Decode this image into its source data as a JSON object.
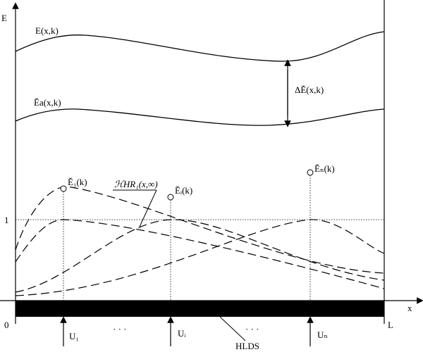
{
  "axes": {
    "y_label": "E",
    "x_label": "x",
    "origin": "0",
    "end": "L",
    "unit_level": "1"
  },
  "curves": {
    "total": "E(x,k)",
    "applied": "Ĕa(x,k)",
    "difference": "ΔĔ(x,k)"
  },
  "contributions": {
    "first": "Ĕ₁(k)",
    "function": "ℋHR₁(x,∞)",
    "middle": "Ĕᵢ(k)",
    "last": "Ĕₙ(k)"
  },
  "inputs": {
    "first": "U₁",
    "middle": "Uᵢ",
    "last": "Uₙ",
    "ellipsis_left": "· · ·",
    "ellipsis_right": "· · ·"
  },
  "bar_label": "HLDS"
}
